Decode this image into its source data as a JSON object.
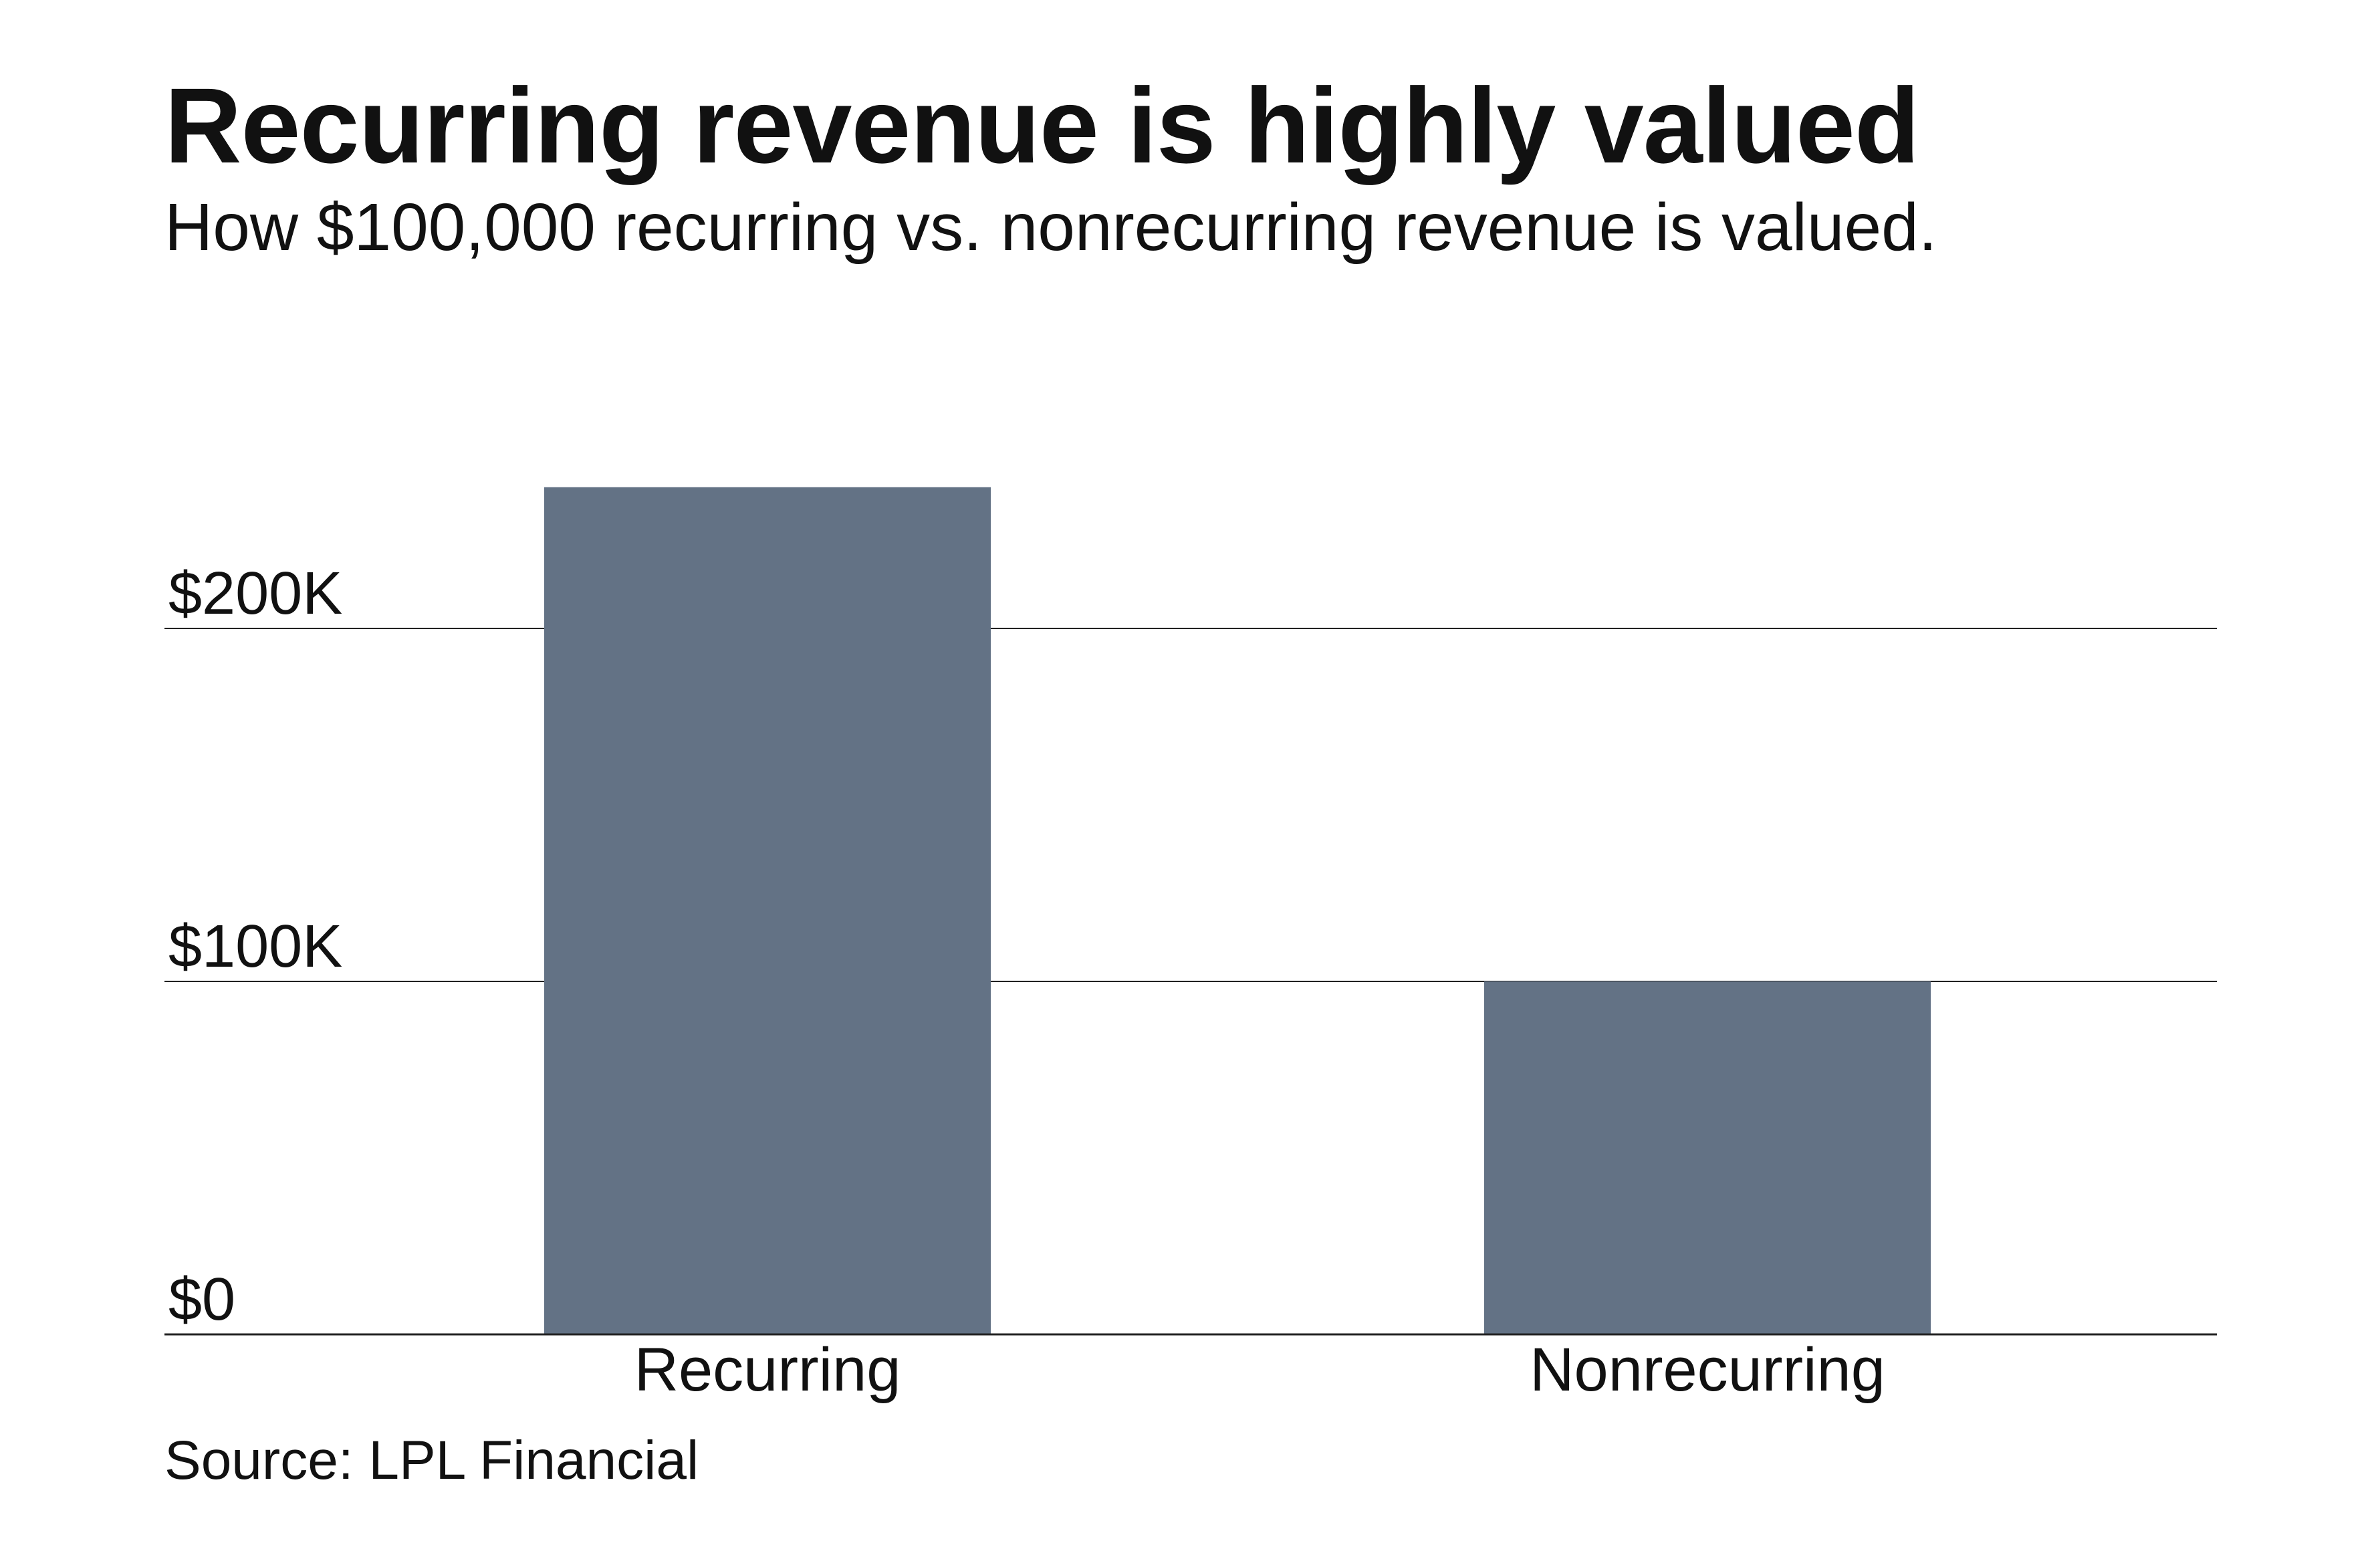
{
  "chart_data": {
    "type": "bar",
    "title": "Recurring revenue is highly valued",
    "subtitle": "How $100,000 recurring vs. nonrecurring revenue is valued.",
    "categories": [
      "Recurring",
      "Nonrecurring"
    ],
    "values": [
      240000,
      100000
    ],
    "ylim": [
      0,
      240000
    ],
    "yticks": [
      0,
      100000,
      200000
    ],
    "ytick_labels": [
      "$0",
      "$100K",
      "$200K"
    ],
    "grid": true,
    "legend": "none",
    "bar_color": "#637285",
    "source": "Source: LPL Financial"
  }
}
